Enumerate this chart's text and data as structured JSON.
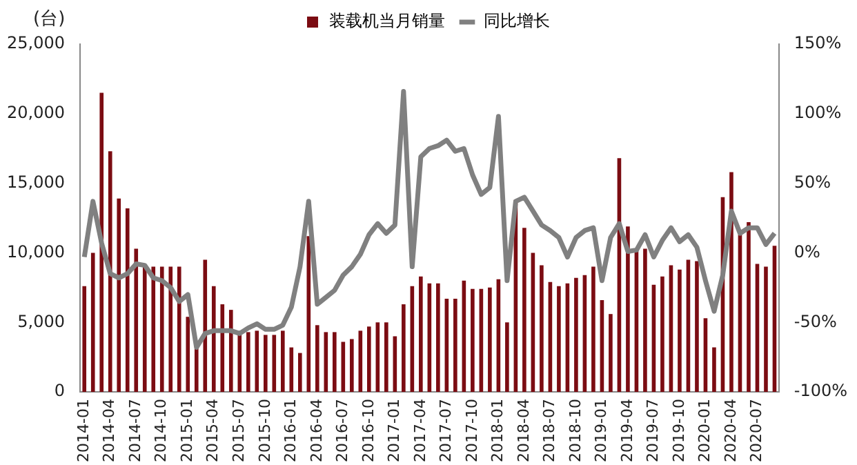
{
  "chart_data": {
    "type": "bar",
    "ylabel": "(台)",
    "legend": "top",
    "categories": [
      "2014-01",
      null,
      null,
      "2014-04",
      null,
      null,
      "2014-07",
      null,
      null,
      "2014-10",
      null,
      null,
      "2015-01",
      null,
      null,
      "2015-04",
      null,
      null,
      "2015-07",
      null,
      null,
      "2015-10",
      null,
      null,
      "2016-01",
      null,
      null,
      "2016-04",
      null,
      null,
      "2016-07",
      null,
      null,
      "2016-10",
      null,
      null,
      "2017-01",
      null,
      null,
      "2017-04",
      null,
      null,
      "2017-07",
      null,
      null,
      "2017-10",
      null,
      null,
      "2018-01",
      null,
      null,
      "2018-04",
      null,
      null,
      "2018-07",
      null,
      null,
      "2018-10",
      null,
      null,
      "2019-01",
      null,
      null,
      "2019-04",
      null,
      null,
      "2019-07",
      null,
      null,
      "2019-10",
      null,
      null,
      "2020-01",
      null,
      null,
      "2020-04",
      null,
      null,
      "2020-07",
      null,
      null
    ],
    "series": [
      {
        "name": "装载机当月销量",
        "color": "#7b0c12",
        "values": [
          7600,
          10000,
          21500,
          17300,
          13900,
          13200,
          10300,
          9100,
          9000,
          9000,
          9000,
          9000,
          5400,
          3200,
          9500,
          7600,
          6300,
          5900,
          4200,
          4300,
          4400,
          4100,
          4100,
          4400,
          3200,
          2800,
          11200,
          4800,
          4300,
          4300,
          3600,
          3800,
          4400,
          4700,
          5000,
          5000,
          4000,
          6300,
          7600,
          8300,
          7800,
          7800,
          6700,
          6700,
          8000,
          7400,
          7400,
          7500,
          8100,
          5000,
          13800,
          11800,
          10000,
          9100,
          7900,
          7600,
          7800,
          8200,
          8400,
          9000,
          6600,
          5600,
          16800,
          11900,
          10200,
          10300,
          7700,
          8300,
          9100,
          8800,
          9500,
          9400,
          5300,
          3200,
          14000,
          15800,
          11300,
          12200,
          9200,
          9000,
          10500
        ]
      },
      {
        "name": "同比增长",
        "type": "line",
        "axis": "y2",
        "color": "#808080",
        "values": [
          -3,
          37,
          7,
          -15,
          -18,
          -15,
          -8,
          -9,
          -18,
          -20,
          -25,
          -35,
          -30,
          -68,
          -58,
          -56,
          -56,
          -56,
          -58,
          -54,
          -51,
          -55,
          -55,
          -52,
          -39,
          -10,
          37,
          -37,
          -32,
          -27,
          -16,
          -10,
          -1,
          13,
          21,
          14,
          20,
          116,
          -10,
          69,
          75,
          77,
          81,
          73,
          75,
          56,
          42,
          47,
          98,
          -20,
          37,
          40,
          30,
          20,
          16,
          11,
          -3,
          11,
          16,
          18,
          -20,
          11,
          21,
          1,
          2,
          13,
          -3,
          9,
          18,
          8,
          13,
          4,
          -20,
          -42,
          -16,
          30,
          14,
          18,
          18,
          6,
          14
        ]
      }
    ],
    "ylim": [
      0,
      25000
    ],
    "yticks": [
      0,
      {
        "value": 5000,
        "label": "5,000"
      },
      {
        "value": 10000,
        "label": "10,000"
      },
      {
        "value": 15000,
        "label": "15,000"
      },
      {
        "value": 20000,
        "label": "20,000"
      },
      {
        "value": 25000,
        "label": "25,000"
      }
    ],
    "y2lim": [
      -100,
      150
    ],
    "y2ticks": [
      {
        "value": -100,
        "label": "-100%"
      },
      {
        "value": -50,
        "label": "-50%"
      },
      {
        "value": 0,
        "label": "0%"
      },
      {
        "value": 50,
        "label": "50%"
      },
      {
        "value": 100,
        "label": "100%"
      },
      {
        "value": 150,
        "label": "150%"
      }
    ],
    "grid": false,
    "marker": "none"
  }
}
